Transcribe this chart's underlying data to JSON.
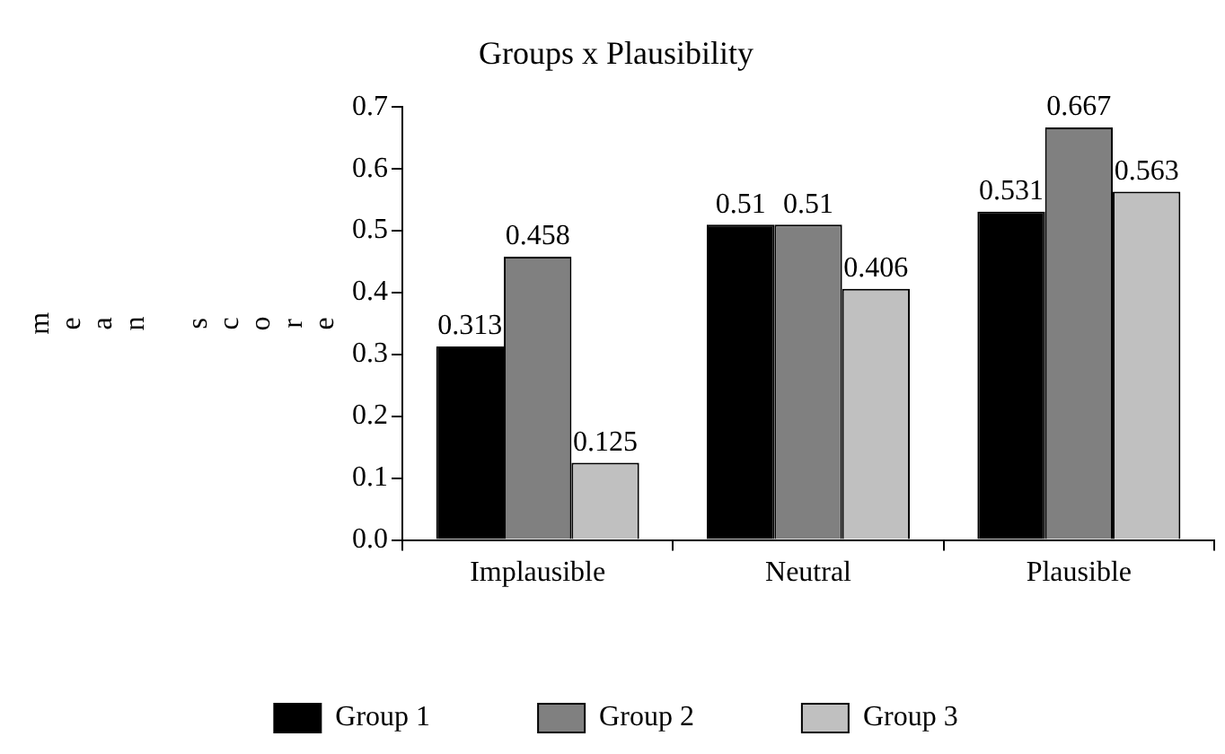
{
  "chart_data": {
    "type": "bar",
    "title": "Groups x Plausibility",
    "ylabel": "mean score",
    "categories": [
      "Implausible",
      "Neutral",
      "Plausible"
    ],
    "series": [
      {
        "name": "Group 1",
        "color": "#000000",
        "values": [
          0.313,
          0.51,
          0.531
        ]
      },
      {
        "name": "Group 2",
        "color": "#808080",
        "values": [
          0.458,
          0.51,
          0.667
        ]
      },
      {
        "name": "Group 3",
        "color": "#c0c0c0",
        "values": [
          0.125,
          0.406,
          0.563
        ]
      }
    ],
    "ylim": [
      0,
      0.7
    ],
    "yticks": [
      {
        "value": 0,
        "label": "0.0"
      },
      {
        "value": 0.1,
        "label": "0.1"
      },
      {
        "value": 0.2,
        "label": "0.2"
      },
      {
        "value": 0.3,
        "label": "0.3"
      },
      {
        "value": 0.4,
        "label": "0.4"
      },
      {
        "value": 0.5,
        "label": "0.5"
      },
      {
        "value": 0.6,
        "label": "0.6"
      },
      {
        "value": 0.7,
        "label": "0.7"
      }
    ],
    "data_labels": true,
    "grid": false,
    "legend": "bottom"
  }
}
